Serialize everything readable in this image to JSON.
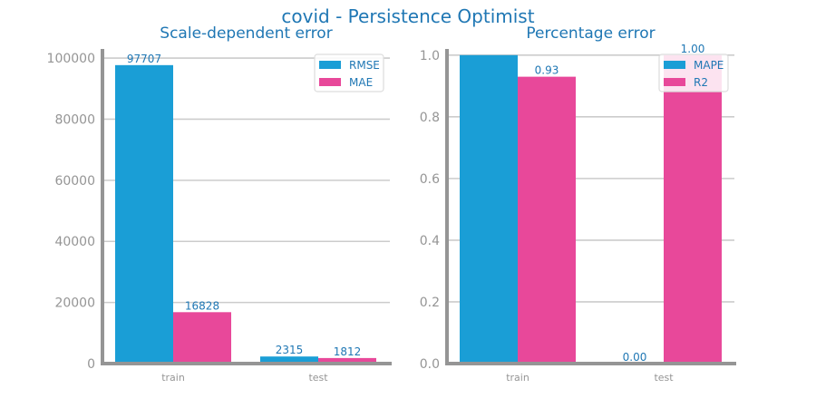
{
  "title": "covid - Persistence Optimist",
  "colors": {
    "series1": "#1a9ed6",
    "series2": "#e8489a",
    "text": "#1f77b4",
    "axis": "#959595",
    "grid": "#cccccc"
  },
  "chart_data": [
    {
      "type": "bar",
      "title": "Scale-dependent error",
      "categories": [
        "train",
        "test"
      ],
      "series": [
        {
          "name": "RMSE",
          "values": [
            97707,
            2315
          ],
          "labels": [
            "97707",
            "2315"
          ]
        },
        {
          "name": "MAE",
          "values": [
            16828,
            1812
          ],
          "labels": [
            "16828",
            "1812"
          ]
        }
      ],
      "ylim": [
        0,
        103000
      ],
      "yticks": [
        0,
        20000,
        40000,
        60000,
        80000,
        100000
      ],
      "ytick_labels": [
        "0",
        "20000",
        "40000",
        "60000",
        "80000",
        "100000"
      ],
      "grid": true,
      "legend": "top-right"
    },
    {
      "type": "bar",
      "title": "Percentage error",
      "categories": [
        "train",
        "test"
      ],
      "series": [
        {
          "name": "MAPE",
          "values": [
            1.0,
            0.0
          ],
          "labels": [
            "",
            "0.00"
          ]
        },
        {
          "name": "R2",
          "values": [
            0.93,
            1.0
          ],
          "labels": [
            "0.93",
            "1.00"
          ]
        }
      ],
      "ylim": [
        0,
        1.02
      ],
      "yticks": [
        0,
        0.2,
        0.4,
        0.6,
        0.8,
        1.0
      ],
      "ytick_labels": [
        "0.0",
        "0.2",
        "0.4",
        "0.6",
        "0.8",
        "1.0"
      ],
      "grid": true,
      "legend": "top-right"
    }
  ]
}
